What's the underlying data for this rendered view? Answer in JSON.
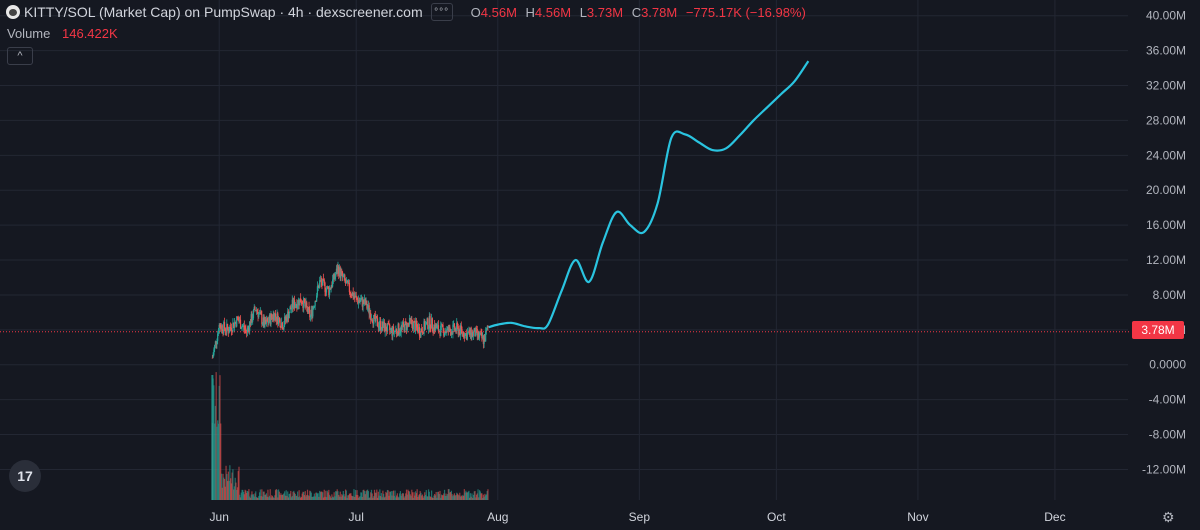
{
  "header": {
    "title": "KITTY/SOL (Market Cap) on PumpSwap · 4h · dexscreener.com",
    "settings_glyph": "°°°",
    "ohlc": {
      "o_label": "O",
      "o_value": "4.56M",
      "h_label": "H",
      "h_value": "4.56M",
      "l_label": "L",
      "l_value": "3.73M",
      "c_label": "C",
      "c_value": "3.78M",
      "change": "−775.17K (−16.98%)"
    },
    "volume_label": "Volume",
    "volume_value": "146.422K",
    "collapse_glyph": "^"
  },
  "logo_text": "17",
  "settings_icon_glyph": "⚙",
  "current_price_label": "3.78M",
  "colors": {
    "background": "#151821",
    "up": "#26a69a",
    "down": "#ef5350",
    "projection": "#2ac4e0",
    "price_line": "#f23645",
    "grid": "#232733",
    "label": "#b2b5be"
  },
  "chart_data": {
    "type": "line",
    "title": "KITTY/SOL (Market Cap) on PumpSwap · 4h · dexscreener.com",
    "y_unit": "USD market cap",
    "y_ticks": [
      "40.00M",
      "36.00M",
      "32.00M",
      "28.00M",
      "24.00M",
      "20.00M",
      "16.00M",
      "12.00M",
      "8.00M",
      "4.00M",
      "0.0000",
      "-4.00M",
      "-8.00M",
      "-12.00M"
    ],
    "y_tick_values": [
      40,
      36,
      32,
      28,
      24,
      20,
      16,
      12,
      8,
      4,
      0,
      -4,
      -8,
      -12
    ],
    "ylim": [
      -15.5,
      41.8
    ],
    "x_ticks": [
      "Jun",
      "Jul",
      "Aug",
      "Sep",
      "Oct",
      "Nov",
      "Dec"
    ],
    "x_tick_days": [
      152,
      182,
      213,
      244,
      274,
      305,
      335
    ],
    "xlim": [
      104,
      351
    ],
    "current_price": 3.78,
    "grid": true,
    "series": [
      {
        "style": "price-candles",
        "x": [
          150.5,
          152,
          154,
          156,
          158,
          160,
          162,
          164,
          166,
          168,
          170,
          172,
          174,
          176,
          178,
          180,
          182,
          184,
          186,
          188,
          190,
          192,
          194,
          196,
          198,
          200,
          202,
          204,
          206,
          208,
          210,
          211
        ],
        "y": [
          0.8,
          4.5,
          4.0,
          5.2,
          3.8,
          6.5,
          4.5,
          5.8,
          4.6,
          6.8,
          7.5,
          5.5,
          9.5,
          8.5,
          11.0,
          9.0,
          7.5,
          7.0,
          5.0,
          4.3,
          3.8,
          4.2,
          4.8,
          3.9,
          4.9,
          4.0,
          3.9,
          4.1,
          3.5,
          3.6,
          2.8,
          4.5
        ]
      },
      {
        "style": "projection-line",
        "x": [
          211,
          213,
          216,
          219,
          222,
          224,
          227,
          230,
          233,
          236,
          239,
          242,
          245,
          248,
          251,
          254,
          257,
          260,
          263,
          266,
          269,
          272,
          275,
          278,
          281
        ],
        "y": [
          4.3,
          4.6,
          4.8,
          4.4,
          4.2,
          4.6,
          8.5,
          12.0,
          9.5,
          14.0,
          17.5,
          16.0,
          15.2,
          18.5,
          26.0,
          26.4,
          25.5,
          24.6,
          24.8,
          26.3,
          28.0,
          29.5,
          31.0,
          32.5,
          34.8
        ]
      }
    ],
    "volume_spike_x": 150.5
  }
}
